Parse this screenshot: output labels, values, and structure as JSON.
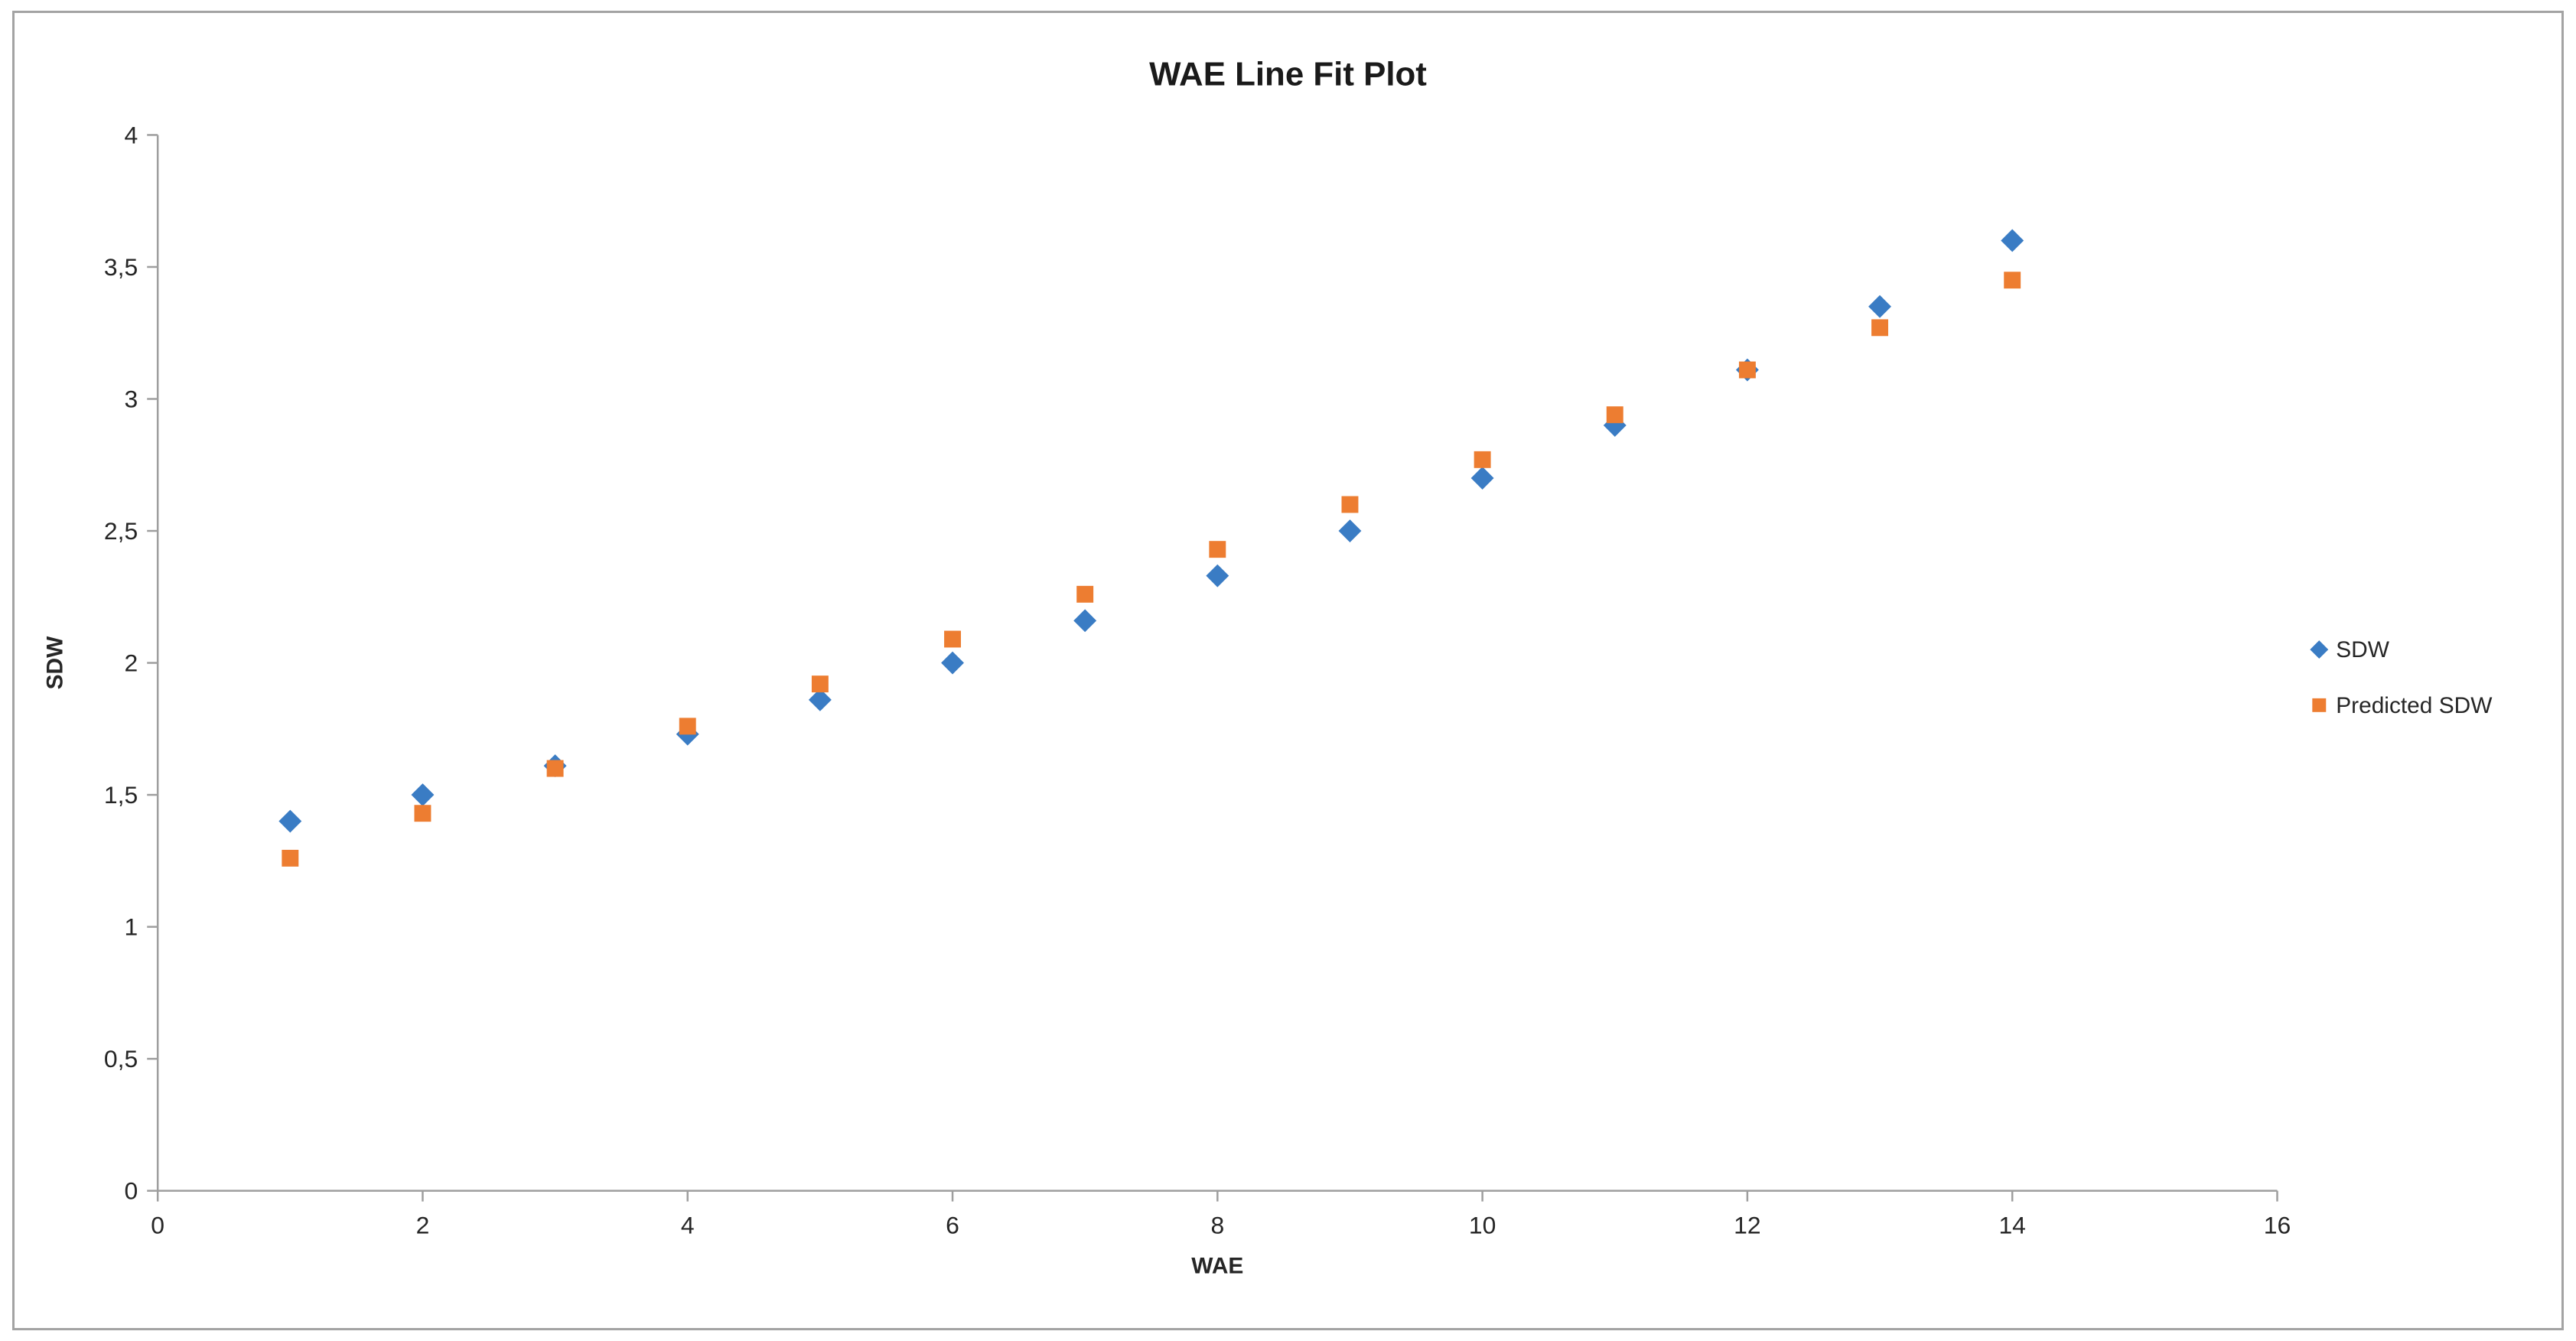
{
  "frame": {
    "background_color": "#FFFFFF",
    "border_color": "#A3A3A3"
  },
  "chart_data": {
    "type": "scatter",
    "title": "WAE Line Fit  Plot",
    "xlabel": "WAE",
    "ylabel": "SDW",
    "xlim": [
      0,
      16
    ],
    "ylim": [
      0,
      4
    ],
    "grid": false,
    "legend_position": "right",
    "xticks": {
      "values": [
        0,
        2,
        4,
        6,
        8,
        10,
        12,
        14,
        16
      ],
      "labels": [
        "0",
        "2",
        "4",
        "6",
        "8",
        "10",
        "12",
        "14",
        "16"
      ]
    },
    "yticks": {
      "values": [
        0,
        0.5,
        1,
        1.5,
        2,
        2.5,
        3,
        3.5,
        4
      ],
      "labels": [
        "0",
        "0,5",
        "1",
        "1,5",
        "2",
        "2,5",
        "3",
        "3,5",
        "4"
      ]
    },
    "x": [
      1,
      2,
      3,
      4,
      5,
      6,
      7,
      8,
      9,
      10,
      11,
      12,
      13,
      14
    ],
    "series": [
      {
        "name": "SDW",
        "marker": "diamond",
        "color": "#3A7CC4",
        "values": [
          1.4,
          1.5,
          1.61,
          1.73,
          1.86,
          2.0,
          2.16,
          2.33,
          2.5,
          2.7,
          2.9,
          3.11,
          3.35,
          3.6
        ]
      },
      {
        "name": "Predicted SDW",
        "marker": "square",
        "color": "#ED7D31",
        "values": [
          1.26,
          1.43,
          1.6,
          1.76,
          1.92,
          2.09,
          2.26,
          2.43,
          2.6,
          2.77,
          2.94,
          3.11,
          3.27,
          3.45
        ]
      }
    ],
    "style": {
      "axis_color": "#9E9E9E",
      "tick_label_color": "#262626",
      "title_color": "#1A1A1A",
      "axis_title_color": "#262626"
    }
  }
}
